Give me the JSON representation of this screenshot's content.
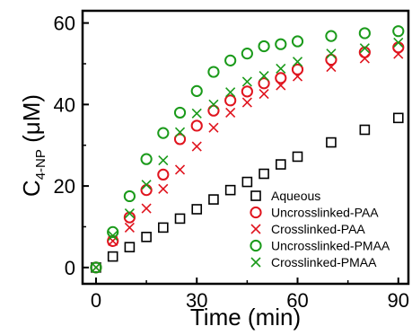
{
  "chart_data": {
    "type": "scatter",
    "xlabel": "Time (min)",
    "ylabel": {
      "main": "C",
      "sub": "4-NP",
      "unit": " (μM)"
    },
    "xlim": [
      -4,
      93
    ],
    "ylim": [
      -4,
      63
    ],
    "x_ticks": [
      0,
      30,
      60,
      90
    ],
    "y_ticks": [
      0,
      20,
      40,
      60
    ],
    "grid": false,
    "legend_position": "bottom-right",
    "series": [
      {
        "name": "Aqueous",
        "marker": "square",
        "color": "#000000",
        "points": [
          [
            0,
            0
          ],
          [
            5,
            2.7
          ],
          [
            10,
            5
          ],
          [
            15,
            7.5
          ],
          [
            20,
            9.8
          ],
          [
            25,
            12
          ],
          [
            30,
            14.3
          ],
          [
            35,
            16.7
          ],
          [
            40,
            19
          ],
          [
            45,
            21
          ],
          [
            50,
            23
          ],
          [
            55,
            25.3
          ],
          [
            60,
            27.2
          ],
          [
            70,
            30.7
          ],
          [
            80,
            33.8
          ],
          [
            90,
            36.7
          ]
        ]
      },
      {
        "name": "Uncrosslinked-PAA",
        "marker": "circle",
        "color": "#e0141e",
        "points": [
          [
            0,
            0
          ],
          [
            5,
            6.5
          ],
          [
            10,
            12.3
          ],
          [
            15,
            19
          ],
          [
            20,
            22.8
          ],
          [
            25,
            31.5
          ],
          [
            30,
            34.8
          ],
          [
            35,
            38.5
          ],
          [
            40,
            41
          ],
          [
            45,
            43.2
          ],
          [
            50,
            45.2
          ],
          [
            55,
            46.5
          ],
          [
            60,
            48.6
          ],
          [
            70,
            51
          ],
          [
            80,
            52.8
          ],
          [
            90,
            54
          ]
        ]
      },
      {
        "name": "Crosslinked-PAA",
        "marker": "x",
        "color": "#e0141e",
        "points": [
          [
            0,
            0
          ],
          [
            5,
            6.5
          ],
          [
            10,
            9.8
          ],
          [
            15,
            14.5
          ],
          [
            20,
            19.3
          ],
          [
            25,
            24
          ],
          [
            30,
            29.7
          ],
          [
            35,
            34.3
          ],
          [
            40,
            38
          ],
          [
            45,
            40.5
          ],
          [
            50,
            42.6
          ],
          [
            55,
            44.7
          ],
          [
            60,
            46.9
          ],
          [
            70,
            49.2
          ],
          [
            80,
            51.3
          ],
          [
            90,
            52.4
          ]
        ]
      },
      {
        "name": "Uncrosslinked-PMAA",
        "marker": "circle",
        "color": "#1a9a1a",
        "points": [
          [
            0,
            0
          ],
          [
            5,
            8.7
          ],
          [
            10,
            17.5
          ],
          [
            15,
            26.6
          ],
          [
            20,
            33
          ],
          [
            25,
            38
          ],
          [
            30,
            43.3
          ],
          [
            35,
            48
          ],
          [
            40,
            50.8
          ],
          [
            45,
            52.5
          ],
          [
            50,
            54.3
          ],
          [
            55,
            54.8
          ],
          [
            60,
            55.5
          ],
          [
            70,
            56.8
          ],
          [
            80,
            57.5
          ],
          [
            90,
            58
          ]
        ]
      },
      {
        "name": "Crosslinked-PMAA",
        "marker": "x",
        "color": "#1a9a1a",
        "points": [
          [
            0,
            0
          ],
          [
            5,
            7.8
          ],
          [
            10,
            13.3
          ],
          [
            15,
            20.3
          ],
          [
            20,
            26.3
          ],
          [
            25,
            33.2
          ],
          [
            30,
            37.8
          ],
          [
            35,
            40
          ],
          [
            40,
            43
          ],
          [
            45,
            45.6
          ],
          [
            50,
            47
          ],
          [
            55,
            48.8
          ],
          [
            60,
            50.5
          ],
          [
            70,
            52.5
          ],
          [
            80,
            53.8
          ],
          [
            90,
            55.2
          ]
        ]
      }
    ]
  }
}
